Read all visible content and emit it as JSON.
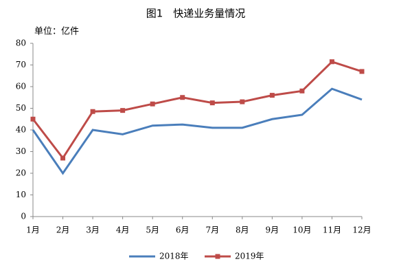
{
  "chart_data": {
    "type": "line",
    "title": "图1　快递业务量情况",
    "y_label": "单位：亿件",
    "categories": [
      "1月",
      "2月",
      "3月",
      "4月",
      "5月",
      "6月",
      "7月",
      "8月",
      "9月",
      "10月",
      "11月",
      "12月"
    ],
    "series": [
      {
        "name": "2018年",
        "color": "#4a7ebb",
        "marker": false,
        "values": [
          40,
          20,
          40,
          38,
          42,
          42.5,
          41,
          41,
          45,
          47,
          59,
          54
        ]
      },
      {
        "name": "2019年",
        "color": "#be4b48",
        "marker": true,
        "values": [
          45,
          27,
          48.5,
          49,
          52,
          55,
          52.5,
          53,
          56,
          58,
          71.5,
          67
        ]
      }
    ],
    "ylim": [
      0,
      80
    ],
    "yticks": [
      0,
      10,
      20,
      30,
      40,
      50,
      60,
      70,
      80
    ],
    "grid": false,
    "legend": "bottom"
  }
}
